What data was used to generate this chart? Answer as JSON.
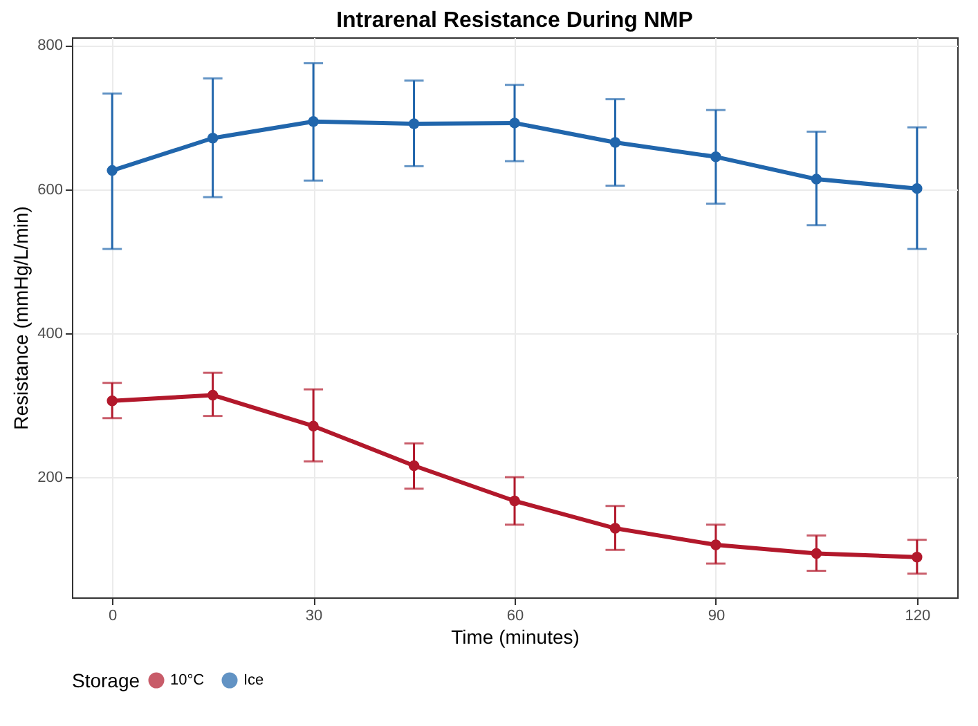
{
  "chart_data": {
    "type": "line",
    "title": "Intrarenal Resistance During NMP",
    "xlabel": "Time (minutes)",
    "ylabel": "Resistance (mmHg/L/min)",
    "legend_title": "Storage",
    "x": [
      0,
      15,
      30,
      45,
      60,
      75,
      90,
      105,
      120
    ],
    "series": [
      {
        "name": "10°C",
        "color": "#b2182b",
        "values": [
          306,
          314,
          271,
          216,
          167,
          129,
          106,
          94,
          89
        ],
        "errors": [
          [
            282,
            331
          ],
          [
            285,
            345
          ],
          [
            222,
            322
          ],
          [
            184,
            247
          ],
          [
            134,
            200
          ],
          [
            99,
            160
          ],
          [
            80,
            134
          ],
          [
            70,
            119
          ],
          [
            66,
            113
          ]
        ]
      },
      {
        "name": "Ice",
        "color": "#2166ac",
        "values": [
          626,
          671,
          694,
          691,
          692,
          665,
          645,
          614,
          601
        ],
        "errors": [
          [
            517,
            733
          ],
          [
            589,
            754
          ],
          [
            612,
            775
          ],
          [
            632,
            751
          ],
          [
            639,
            745
          ],
          [
            605,
            725
          ],
          [
            580,
            710
          ],
          [
            550,
            680
          ],
          [
            517,
            686
          ]
        ]
      }
    ],
    "xlim": [
      -6,
      126
    ],
    "xticks": [
      0,
      30,
      60,
      90,
      120
    ],
    "ylim": [
      33,
      811
    ],
    "yticks": [
      200,
      400,
      600,
      800
    ],
    "grid": true,
    "legend": "bottom",
    "marker": "circle",
    "line_style": "solid"
  }
}
